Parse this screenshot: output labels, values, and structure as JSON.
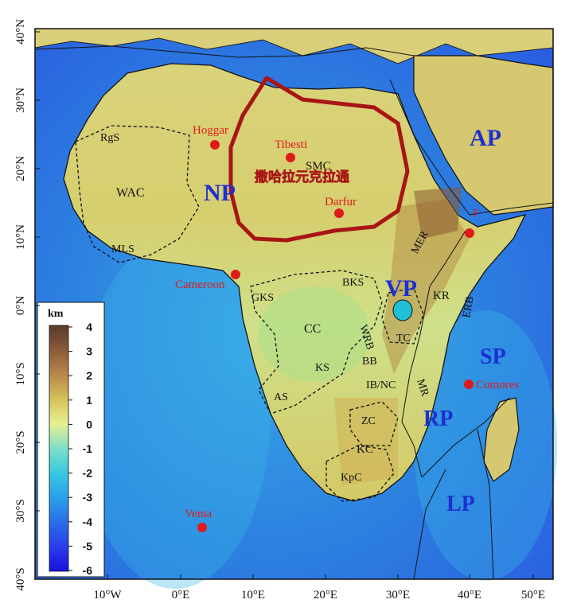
{
  "colors": {
    "ocean_deep": "#1f3fd6",
    "ocean_mid": "#2e8be0",
    "ocean_shallow": "#5fd0d8",
    "lowland": "#c9e27a",
    "upland": "#d8c25a",
    "highland": "#9a6a3a",
    "craton_outline": "#b01818",
    "plate_label": "#1e2fd2",
    "hotspot_red": "#e01a1a",
    "hotspot_text": "#e01a1a"
  },
  "axes": {
    "lat_ticks": [
      "40°N",
      "30°N",
      "20°N",
      "10°N",
      "0°N",
      "10°S",
      "20°S",
      "30°S",
      "40°S"
    ],
    "lon_ticks": [
      "10°W",
      "0°E",
      "10°E",
      "20°E",
      "30°E",
      "40°E",
      "50°E"
    ]
  },
  "colorbar": {
    "unit": "km",
    "ticks": [
      "4",
      "3",
      "2",
      "1",
      "0",
      "-1",
      "-2",
      "-3",
      "-4",
      "-5",
      "-6"
    ]
  },
  "craton_label": "撒哈拉元克拉通",
  "plates": {
    "NP": "NP",
    "AP": "AP",
    "VP": "VP",
    "SP": "SP",
    "RP": "RP",
    "LP": "LP"
  },
  "hotspots": {
    "hoggar": "Hoggar",
    "tibesti": "Tibesti",
    "darfur": "Darfur",
    "cameroon": "Cameroon",
    "afar": "F",
    "comores": "Comores",
    "vema": "Vema"
  },
  "regions": {
    "rgs": "RgS",
    "wac": "WAC",
    "mls": "MLS",
    "smc": "SMC",
    "gks": "GKS",
    "bks": "BKS",
    "wrb": "WRB",
    "cc": "CC",
    "kr": "KR",
    "erb": "ERB",
    "mer": "MER",
    "tc": "TC",
    "ks": "KS",
    "bb": "BB",
    "as": "AS",
    "ibnc": "IB/NC",
    "mr": "MR",
    "zc": "ZC",
    "kc": "KC",
    "kpc": "KpC"
  }
}
